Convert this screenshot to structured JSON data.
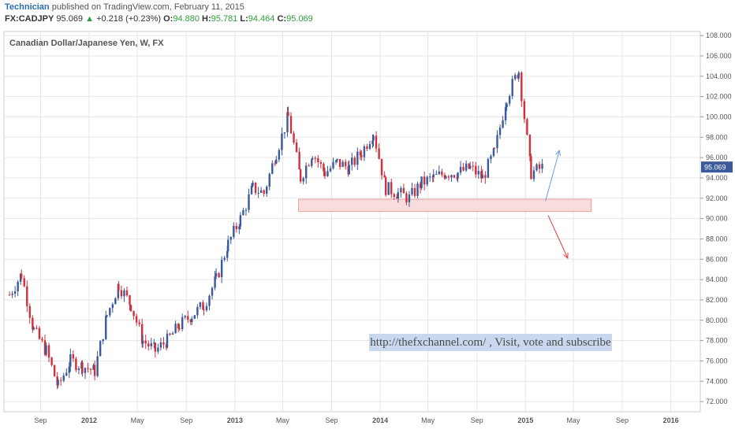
{
  "header": {
    "author": "Technician",
    "published_text": "published on TradingView.com, February 11, 2015",
    "symbol": "FX:CADJPY",
    "last": "95.069",
    "change_arrow": "▲",
    "change": "+0.218 (+0.23%)",
    "open_label": "O:",
    "open": "94.880",
    "high_label": "H:",
    "high": "95.781",
    "low_label": "L:",
    "low": "94.464",
    "close_label": "C:",
    "close": "95.069"
  },
  "watermark": "http://thefxchannel.com/ , Visit, vote and subscribe",
  "colors": {
    "up": "#3a5a9c",
    "down": "#d0303a",
    "grid": "#e6e6e6",
    "zone_fill": "#f9dcdc",
    "zone_stroke": "#e5a0a0",
    "arrow_up": "#6a9fd8",
    "arrow_down": "#d84040",
    "price_tag": "#3a5a9c"
  },
  "chart_data": {
    "type": "candlestick",
    "title": "Canadian Dollar/Japanese Yen, W, FX",
    "ylim": [
      71,
      108.4
    ],
    "y_ticks": [
      "72.000",
      "74.000",
      "76.000",
      "78.000",
      "80.000",
      "82.000",
      "84.000",
      "86.000",
      "88.000",
      "90.000",
      "92.000",
      "94.000",
      "96.000",
      "98.000",
      "100.000",
      "102.000",
      "104.000",
      "106.000",
      "108.000"
    ],
    "x_ticks": [
      "Sep",
      "2012",
      "May",
      "Sep",
      "2013",
      "May",
      "Sep",
      "2014",
      "May",
      "Sep",
      "2015",
      "May",
      "Sep",
      "2016"
    ],
    "last_price_label": "95.069",
    "close_path": [
      {
        "date": "2011-06",
        "close": 82.5
      },
      {
        "date": "2011-07",
        "close": 84.5
      },
      {
        "date": "2011-08",
        "close": 79.0
      },
      {
        "date": "2011-09",
        "close": 77.0
      },
      {
        "date": "2011-10",
        "close": 73.5
      },
      {
        "date": "2011-11",
        "close": 76.0
      },
      {
        "date": "2011-12",
        "close": 75.5
      },
      {
        "date": "2012-01",
        "close": 75.0
      },
      {
        "date": "2012-02",
        "close": 80.5
      },
      {
        "date": "2012-03",
        "close": 83.5
      },
      {
        "date": "2012-04",
        "close": 81.5
      },
      {
        "date": "2012-05",
        "close": 78.0
      },
      {
        "date": "2012-06",
        "close": 77.0
      },
      {
        "date": "2012-07",
        "close": 78.0
      },
      {
        "date": "2012-08",
        "close": 79.5
      },
      {
        "date": "2012-09",
        "close": 80.5
      },
      {
        "date": "2012-10",
        "close": 81.5
      },
      {
        "date": "2012-11",
        "close": 84.0
      },
      {
        "date": "2012-12",
        "close": 87.5
      },
      {
        "date": "2013-01",
        "close": 90.0
      },
      {
        "date": "2013-02",
        "close": 93.0
      },
      {
        "date": "2013-03",
        "close": 92.5
      },
      {
        "date": "2013-04",
        "close": 96.5
      },
      {
        "date": "2013-05",
        "close": 100.0
      },
      {
        "date": "2013-06",
        "close": 94.0
      },
      {
        "date": "2013-07",
        "close": 96.5
      },
      {
        "date": "2013-08",
        "close": 94.5
      },
      {
        "date": "2013-09",
        "close": 95.5
      },
      {
        "date": "2013-10",
        "close": 95.0
      },
      {
        "date": "2013-11",
        "close": 96.5
      },
      {
        "date": "2013-12",
        "close": 98.5
      },
      {
        "date": "2014-01",
        "close": 93.0
      },
      {
        "date": "2014-02",
        "close": 92.5
      },
      {
        "date": "2014-03",
        "close": 92.0
      },
      {
        "date": "2014-04",
        "close": 93.5
      },
      {
        "date": "2014-05",
        "close": 94.0
      },
      {
        "date": "2014-06",
        "close": 94.5
      },
      {
        "date": "2014-07",
        "close": 94.5
      },
      {
        "date": "2014-08",
        "close": 95.0
      },
      {
        "date": "2014-09",
        "close": 94.0
      },
      {
        "date": "2014-10",
        "close": 96.5
      },
      {
        "date": "2014-11",
        "close": 102.0
      },
      {
        "date": "2014-12",
        "close": 104.5
      },
      {
        "date": "2015-01",
        "close": 94.5
      },
      {
        "date": "2015-02",
        "close": 95.069
      }
    ],
    "support_zone": {
      "from": "2013-06",
      "to": "2015-06",
      "low": 90.7,
      "high": 91.9
    },
    "arrows": [
      {
        "from": {
          "date": "2015-02-20",
          "price": 91.7
        },
        "to": {
          "date": "2015-03-27",
          "price": 96.7
        }
      },
      {
        "from": {
          "date": "2015-02-27",
          "price": 90.3
        },
        "to": {
          "date": "2015-04-17",
          "price": 86.1
        }
      }
    ]
  }
}
